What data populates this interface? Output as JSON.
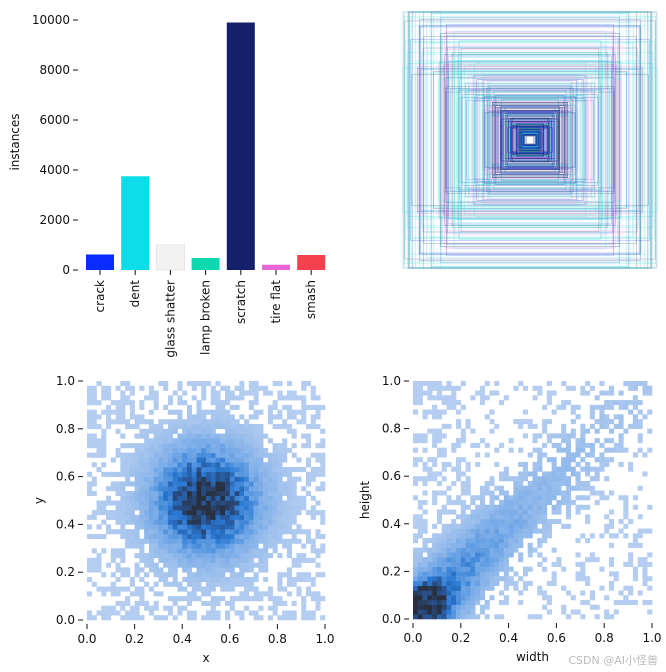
{
  "chart_data": [
    {
      "type": "bar",
      "name": "instances-per-class",
      "ylabel": "instances",
      "xlabel": "",
      "ylim": [
        0,
        10400
      ],
      "yticks": [
        "0",
        "2000",
        "4000",
        "6000",
        "8000",
        "10000"
      ],
      "categories": [
        "crack",
        "dent",
        "glass shatter",
        "lamp broken",
        "scratch",
        "tire flat",
        "smash"
      ],
      "values": [
        620,
        3750,
        1000,
        480,
        9900,
        210,
        600
      ],
      "colors": [
        "#0a2cff",
        "#0ddde8",
        "#f2f2f2",
        "#0fd8b0",
        "#15206a",
        "#e866d8",
        "#f5404e"
      ]
    },
    {
      "type": "bbox-overlay",
      "name": "box-size-overlay",
      "description_colors": [
        "#0ddde8",
        "#15206a",
        "#0a2cff",
        "#e866d8",
        "#0fd8b0"
      ]
    },
    {
      "type": "heatmap",
      "name": "xy-center-distribution",
      "xlabel": "x",
      "ylabel": "y",
      "xlim": [
        0,
        1
      ],
      "ylim": [
        0,
        1
      ],
      "xticks": [
        "0.0",
        "0.2",
        "0.4",
        "0.6",
        "0.8",
        "1.0"
      ],
      "yticks": [
        "0.0",
        "0.2",
        "0.4",
        "0.6",
        "0.8",
        "1.0"
      ],
      "peak": [
        0.5,
        0.5
      ],
      "spread": 0.15
    },
    {
      "type": "heatmap",
      "name": "width-height-distribution",
      "xlabel": "width",
      "ylabel": "height",
      "xlim": [
        0,
        1
      ],
      "ylim": [
        0,
        1
      ],
      "xticks": [
        "0.0",
        "0.2",
        "0.4",
        "0.6",
        "0.8",
        "1.0"
      ],
      "yticks": [
        "0.0",
        "0.2",
        "0.4",
        "0.6",
        "0.8",
        "1.0"
      ],
      "peak": [
        0.06,
        0.06
      ],
      "spread": 0.12
    }
  ],
  "watermark": "CSDN @AI小怪兽"
}
